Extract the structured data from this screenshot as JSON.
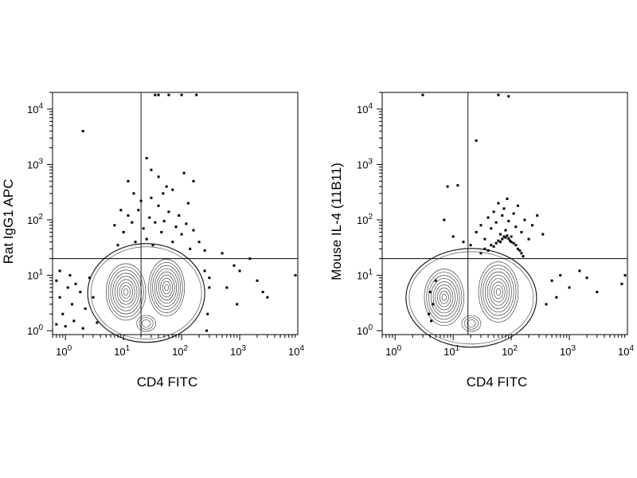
{
  "chart_data": [
    {
      "type": "contour-scatter",
      "xlabel": "CD4 FITC",
      "ylabel": "Rat IgG1 APC",
      "x_scale": "log",
      "y_scale": "log",
      "xlim": [
        0.6,
        10000
      ],
      "ylim": [
        0.85,
        20000
      ],
      "x_ticks": [
        {
          "base": "10",
          "exp": "0",
          "value": 1
        },
        {
          "base": "10",
          "exp": "1",
          "value": 10
        },
        {
          "base": "10",
          "exp": "2",
          "value": 100
        },
        {
          "base": "10",
          "exp": "3",
          "value": 1000
        },
        {
          "base": "10",
          "exp": "4",
          "value": 10000
        }
      ],
      "y_ticks": [
        {
          "base": "10",
          "exp": "0",
          "value": 1
        },
        {
          "base": "10",
          "exp": "1",
          "value": 10
        },
        {
          "base": "10",
          "exp": "2",
          "value": 100
        },
        {
          "base": "10",
          "exp": "3",
          "value": 1000
        },
        {
          "base": "10",
          "exp": "4",
          "value": 10000
        }
      ],
      "quadrant_gate": {
        "x": 20,
        "y": 20
      },
      "populations": [
        {
          "cx": 11,
          "cy": 5,
          "sx": 0.22,
          "sy": 0.3
        },
        {
          "cx": 55,
          "cy": 6,
          "sx": 0.2,
          "sy": 0.3
        }
      ],
      "points": [
        [
          2,
          4000
        ],
        [
          35,
          18000
        ],
        [
          40,
          18000
        ],
        [
          60,
          18000
        ],
        [
          100,
          18000
        ],
        [
          180,
          18000
        ],
        [
          12,
          500
        ],
        [
          15,
          300
        ],
        [
          25,
          1300
        ],
        [
          30,
          800
        ],
        [
          40,
          600
        ],
        [
          55,
          400
        ],
        [
          70,
          350
        ],
        [
          110,
          700
        ],
        [
          130,
          200
        ],
        [
          160,
          500
        ],
        [
          10,
          60
        ],
        [
          12,
          120
        ],
        [
          14,
          90
        ],
        [
          16,
          40
        ],
        [
          18,
          150
        ],
        [
          22,
          70
        ],
        [
          25,
          45
        ],
        [
          28,
          110
        ],
        [
          32,
          35
        ],
        [
          35,
          90
        ],
        [
          40,
          180
        ],
        [
          45,
          60
        ],
        [
          50,
          95
        ],
        [
          60,
          140
        ],
        [
          70,
          40
        ],
        [
          80,
          75
        ],
        [
          90,
          120
        ],
        [
          100,
          55
        ],
        [
          120,
          85
        ],
        [
          140,
          30
        ],
        [
          160,
          65
        ],
        [
          200,
          40
        ],
        [
          250,
          28
        ],
        [
          7,
          80
        ],
        [
          8,
          35
        ],
        [
          9,
          150
        ],
        [
          20,
          220
        ],
        [
          30,
          250
        ],
        [
          48,
          300
        ],
        [
          1000,
          12
        ],
        [
          1500,
          20
        ],
        [
          2000,
          8
        ],
        [
          2500,
          5
        ],
        [
          800,
          15
        ],
        [
          600,
          6
        ],
        [
          900,
          3
        ],
        [
          3000,
          4
        ],
        [
          10000,
          10
        ],
        [
          500,
          25
        ],
        [
          300,
          9
        ],
        [
          0.7,
          8
        ],
        [
          0.8,
          4
        ],
        [
          0.9,
          2
        ],
        [
          1.1,
          6
        ],
        [
          1.3,
          3
        ],
        [
          1.5,
          7
        ],
        [
          1.8,
          5
        ],
        [
          2.2,
          2.5
        ],
        [
          2.6,
          9
        ],
        [
          3,
          4
        ],
        [
          1,
          1.2
        ],
        [
          1.4,
          1.5
        ],
        [
          2,
          1.1
        ],
        [
          0.7,
          1.3
        ],
        [
          3.5,
          1.4
        ],
        [
          0.8,
          12
        ],
        [
          1.2,
          10
        ],
        [
          250,
          12
        ],
        [
          300,
          6
        ],
        [
          280,
          2
        ],
        [
          270,
          1
        ]
      ]
    },
    {
      "type": "contour-scatter",
      "xlabel": "CD4 FITC",
      "ylabel": "Mouse IL-4 (11B11)",
      "x_scale": "log",
      "y_scale": "log",
      "xlim": [
        0.6,
        10000
      ],
      "ylim": [
        0.85,
        20000
      ],
      "x_ticks": [
        {
          "base": "10",
          "exp": "0",
          "value": 1
        },
        {
          "base": "10",
          "exp": "1",
          "value": 10
        },
        {
          "base": "10",
          "exp": "2",
          "value": 100
        },
        {
          "base": "10",
          "exp": "3",
          "value": 1000
        },
        {
          "base": "10",
          "exp": "4",
          "value": 10000
        }
      ],
      "y_ticks": [
        {
          "base": "10",
          "exp": "0",
          "value": 1
        },
        {
          "base": "10",
          "exp": "1",
          "value": 10
        },
        {
          "base": "10",
          "exp": "2",
          "value": 100
        },
        {
          "base": "10",
          "exp": "3",
          "value": 1000
        },
        {
          "base": "10",
          "exp": "4",
          "value": 10000
        }
      ],
      "quadrant_gate": {
        "x": 18,
        "y": 20
      },
      "populations": [
        {
          "cx": 7,
          "cy": 4,
          "sx": 0.22,
          "sy": 0.3
        },
        {
          "cx": 60,
          "cy": 5,
          "sx": 0.22,
          "sy": 0.32
        }
      ],
      "points": [
        [
          3,
          18000
        ],
        [
          60,
          18000
        ],
        [
          90,
          17000
        ],
        [
          25,
          2700
        ],
        [
          8,
          400
        ],
        [
          12,
          420
        ],
        [
          7,
          100
        ],
        [
          10,
          50
        ],
        [
          15,
          40
        ],
        [
          20,
          35
        ],
        [
          25,
          60
        ],
        [
          30,
          80
        ],
        [
          35,
          45
        ],
        [
          40,
          110
        ],
        [
          45,
          70
        ],
        [
          50,
          140
        ],
        [
          55,
          90
        ],
        [
          60,
          200
        ],
        [
          65,
          55
        ],
        [
          70,
          120
        ],
        [
          75,
          160
        ],
        [
          80,
          65
        ],
        [
          85,
          240
        ],
        [
          90,
          95
        ],
        [
          100,
          50
        ],
        [
          110,
          130
        ],
        [
          120,
          75
        ],
        [
          130,
          180
        ],
        [
          150,
          60
        ],
        [
          170,
          100
        ],
        [
          200,
          45
        ],
        [
          230,
          80
        ],
        [
          280,
          120
        ],
        [
          350,
          55
        ],
        [
          30,
          25
        ],
        [
          35,
          30
        ],
        [
          40,
          28
        ],
        [
          45,
          35
        ],
        [
          50,
          33
        ],
        [
          55,
          38
        ],
        [
          60,
          42
        ],
        [
          65,
          40
        ],
        [
          70,
          45
        ],
        [
          75,
          50
        ],
        [
          80,
          48
        ],
        [
          85,
          52
        ],
        [
          90,
          46
        ],
        [
          95,
          42
        ],
        [
          100,
          40
        ],
        [
          110,
          38
        ],
        [
          120,
          35
        ],
        [
          130,
          30
        ],
        [
          140,
          28
        ],
        [
          150,
          25
        ],
        [
          160,
          22
        ],
        [
          500,
          8
        ],
        [
          700,
          10
        ],
        [
          1000,
          6
        ],
        [
          1500,
          12
        ],
        [
          2000,
          9
        ],
        [
          3000,
          5
        ],
        [
          8000,
          7
        ],
        [
          10000,
          10
        ],
        [
          400,
          3
        ],
        [
          600,
          4
        ],
        [
          4,
          5
        ],
        [
          4.5,
          3
        ],
        [
          5,
          8
        ],
        [
          3.8,
          2
        ],
        [
          4.2,
          1.5
        ]
      ]
    }
  ]
}
